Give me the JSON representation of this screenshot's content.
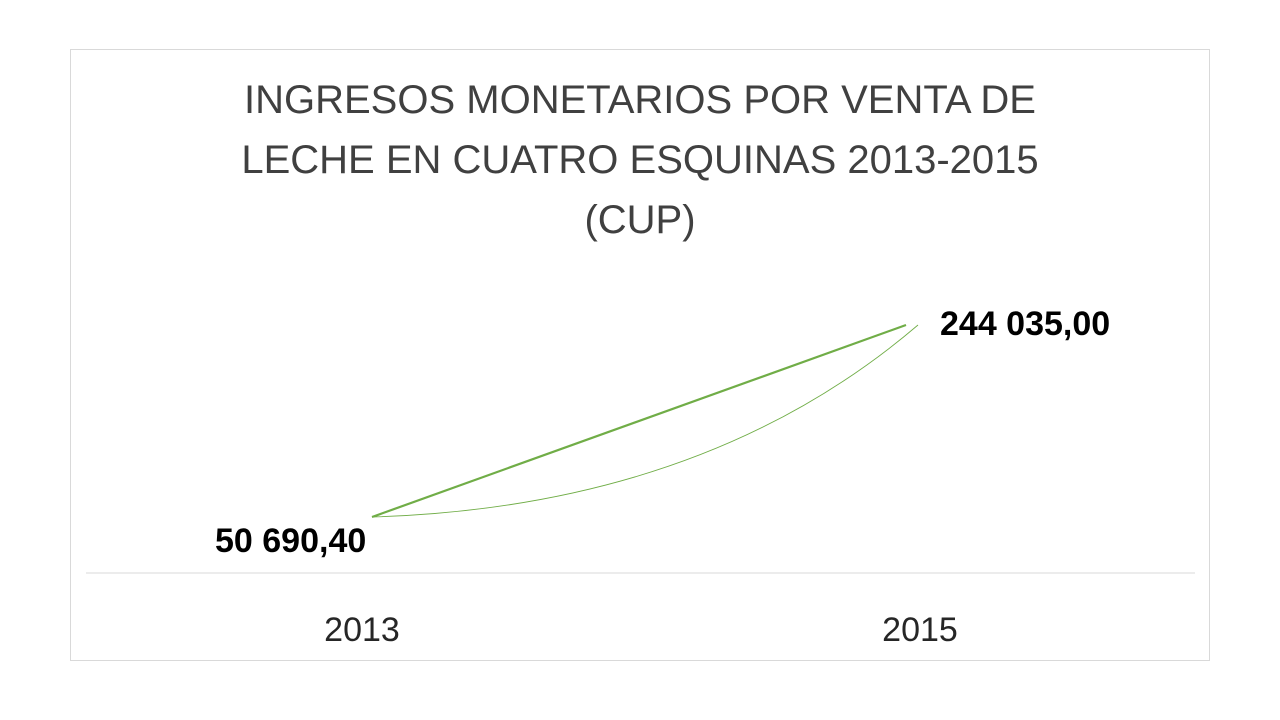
{
  "chart_data": {
    "type": "line",
    "title_lines": [
      "INGRESOS MONETARIOS POR VENTA DE",
      "LECHE EN CUATRO ESQUINAS 2013-2015",
      "(CUP)"
    ],
    "categories": [
      "2013",
      "2015"
    ],
    "series": [
      {
        "values": [
          50690.4,
          244035.0
        ],
        "data_labels": [
          "50 690,40",
          "244 035,00"
        ],
        "color": "#70ad47"
      }
    ],
    "trendline": {
      "type": "smooth-curve",
      "color": "#70ad47"
    },
    "grid": false,
    "legend": "none"
  }
}
